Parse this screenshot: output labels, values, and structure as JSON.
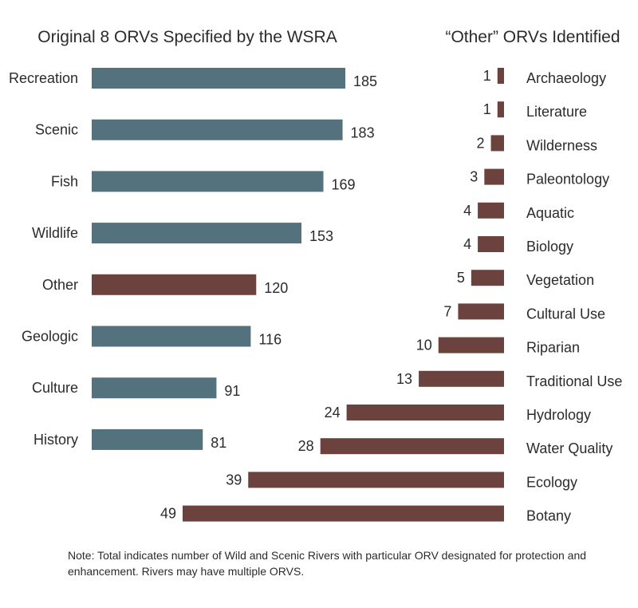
{
  "chart_data": [
    {
      "type": "bar",
      "orientation": "horizontal",
      "title": "Original 8 ORVs Specified by the WSRA",
      "categories": [
        "Recreation",
        "Scenic",
        "Fish",
        "Wildlife",
        "Other",
        "Geologic",
        "Culture",
        "History"
      ],
      "values": [
        185,
        183,
        169,
        153,
        120,
        116,
        91,
        81
      ],
      "colors": [
        "#54717e",
        "#54717e",
        "#54717e",
        "#54717e",
        "#6b423e",
        "#54717e",
        "#54717e",
        "#54717e"
      ],
      "grid": false,
      "xlabel": "",
      "ylabel": ""
    },
    {
      "type": "bar",
      "orientation": "horizontal",
      "direction": "right-to-left",
      "title": "“Other” ORVs Identified",
      "categories": [
        "Archaeology",
        "Literature",
        "Wilderness",
        "Paleontology",
        "Aquatic",
        "Biology",
        "Vegetation",
        "Cultural Use",
        "Riparian",
        "Traditional Use",
        "Hydrology",
        "Water Quality",
        "Ecology",
        "Botany"
      ],
      "values": [
        1,
        1,
        2,
        3,
        4,
        4,
        5,
        7,
        10,
        13,
        24,
        28,
        39,
        49
      ],
      "color": "#6b423e",
      "grid": false,
      "xlabel": "",
      "ylabel": ""
    }
  ],
  "note": "Note: Total indicates number of Wild and Scenic Rivers with particular ORV designated for protection and enhancement. Rivers may have multiple ORVS."
}
